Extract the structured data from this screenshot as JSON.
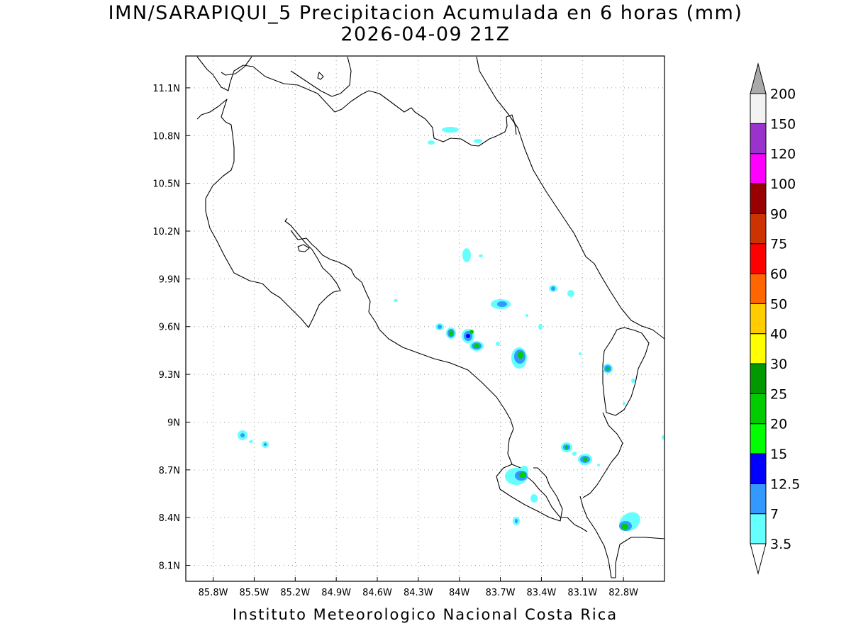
{
  "title": {
    "line1": "IMN/SARAPIQUI_5 Precipitacion Acumulada en 6 horas (mm)",
    "line2": "2026-04-09 21Z"
  },
  "footer": "Instituto Meteorologico Nacional Costa Rica",
  "map": {
    "lon_range": [
      -86.0,
      -82.5
    ],
    "lat_range": [
      8.0,
      11.3
    ],
    "lon_ticks": [
      "85.8W",
      "85.5W",
      "85.2W",
      "84.9W",
      "84.6W",
      "84.3W",
      "84W",
      "83.7W",
      "83.4W",
      "83.1W",
      "82.8W"
    ],
    "lat_ticks": [
      "11.1N",
      "10.8N",
      "10.5N",
      "10.2N",
      "9.9N",
      "9.6N",
      "9.3N",
      "9N",
      "8.7N",
      "8.4N",
      "8.1N"
    ],
    "grid": "dotted"
  },
  "colorbar": {
    "levels": [
      "3.5",
      "7",
      "12.5",
      "15",
      "20",
      "25",
      "30",
      "40",
      "50",
      "60",
      "75",
      "90",
      "100",
      "120",
      "150",
      "200"
    ],
    "colors": [
      "#66ffff",
      "#3399ff",
      "#0000ff",
      "#00ff00",
      "#00cc00",
      "#009900",
      "#ffff00",
      "#ffcc00",
      "#ff6600",
      "#ff0000",
      "#cc3300",
      "#990000",
      "#ff00ff",
      "#9933cc",
      "#f2f2f2"
    ],
    "under_color": "#ffffff",
    "over_color": "#aaaaaa"
  }
}
